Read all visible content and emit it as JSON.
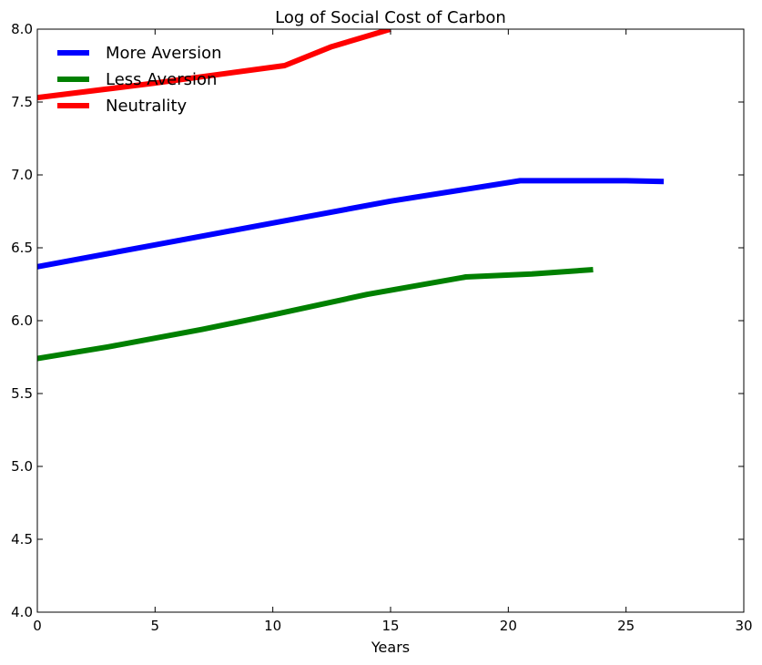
{
  "chart_data": {
    "type": "line",
    "title": "Log of Social Cost of Carbon",
    "xlabel": "Years",
    "ylabel": "",
    "xlim": [
      0,
      30
    ],
    "ylim": [
      4.0,
      8.0
    ],
    "xticks": [
      "0",
      "5",
      "10",
      "15",
      "20",
      "25",
      "30"
    ],
    "yticks": [
      "4.0",
      "4.5",
      "5.0",
      "5.5",
      "6.0",
      "6.5",
      "7.0",
      "7.5",
      "8.0"
    ],
    "grid": false,
    "legend_position": "top-left",
    "series": [
      {
        "name": "More Aversion",
        "color": "#0000ff",
        "x": [
          0,
          5,
          10,
          15,
          20.5,
          25,
          26.6
        ],
        "y": [
          6.37,
          6.52,
          6.67,
          6.82,
          6.96,
          6.96,
          6.955
        ]
      },
      {
        "name": "Less Aversion",
        "color": "#008000",
        "x": [
          0,
          3,
          7,
          10,
          14,
          18.2,
          21,
          23.6
        ],
        "y": [
          5.74,
          5.82,
          5.94,
          6.04,
          6.18,
          6.3,
          6.32,
          6.35
        ]
      },
      {
        "name": "Neutrality",
        "color": "#ff0000",
        "x": [
          0,
          5,
          10.5,
          12.5,
          15
        ],
        "y": [
          7.53,
          7.63,
          7.75,
          7.88,
          8.0
        ]
      }
    ]
  }
}
